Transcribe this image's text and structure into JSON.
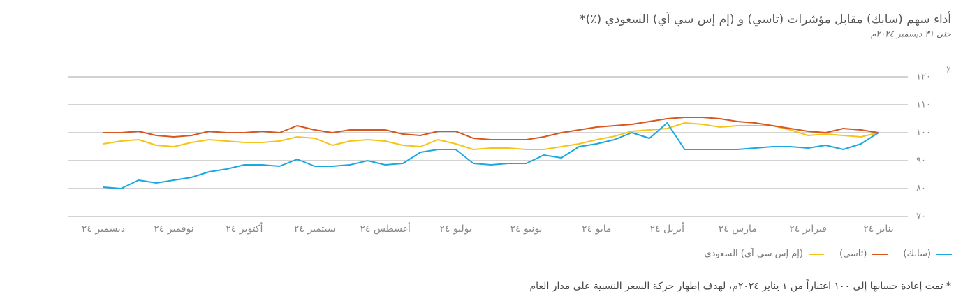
{
  "chart_data": {
    "type": "line",
    "title": "أداء سهم (سابك) مقابل مؤشرات (تاسي) و (إم إس سي آي) السعودي (٪)*",
    "subtitle": "حتى ٣١ ديسمبر ٢٠٢٤م",
    "y_label": "٪",
    "footnote": "* تمت إعادة حسابها إلى ١٠٠ اعتباراً من ١ يناير ٢٠٢٤م، لهدف إظهار حركة السعر النسبية على مدار العام",
    "categories": [
      "يناير ٢٤",
      null,
      null,
      null,
      "فبراير ٢٤",
      null,
      null,
      null,
      "مارس ٢٤",
      null,
      null,
      null,
      "أبريل ٢٤",
      null,
      null,
      null,
      "مايو ٢٤",
      null,
      null,
      null,
      "يونيو ٢٤",
      null,
      null,
      null,
      "يوليو ٢٤",
      null,
      null,
      null,
      "أغسطس ٢٤",
      null,
      null,
      null,
      "سبتمبر ٢٤",
      null,
      null,
      null,
      "أكتوبر ٢٤",
      null,
      null,
      null,
      "نوفمبر ٢٤",
      null,
      null,
      null,
      "ديسمبر ٢٤"
    ],
    "series": [
      {
        "name": "(سابك)",
        "color": "#1ba8e0",
        "values": [
          100,
          96,
          94,
          95.5,
          94.5,
          95,
          95,
          94.5,
          94,
          94,
          94,
          94,
          103.5,
          98,
          100,
          97.5,
          96,
          95,
          91,
          92,
          89,
          89,
          88.5,
          89,
          94,
          94,
          93,
          89,
          88.5,
          90,
          88.5,
          88,
          88,
          90.5,
          88,
          88.5,
          88.5,
          87,
          86,
          84,
          83,
          82,
          83,
          80,
          80.5
        ]
      },
      {
        "name": "(تاسي)",
        "color": "#d9561e",
        "values": [
          100,
          101,
          101.5,
          100,
          100.5,
          101.5,
          102.5,
          103.5,
          104,
          105,
          105.5,
          105.5,
          105,
          104,
          103,
          102.5,
          102,
          101,
          100,
          98.5,
          97.5,
          97.5,
          97.5,
          98,
          100.5,
          100.5,
          99,
          99.5,
          101,
          101,
          101,
          100,
          101,
          102.5,
          100,
          100.5,
          100,
          100,
          100.5,
          99,
          98.5,
          99,
          100.5,
          100,
          100
        ]
      },
      {
        "name": "(إم إس سي آي) السعودي",
        "color": "#f5c41a",
        "values": [
          100,
          98.5,
          99,
          99.5,
          99,
          101,
          102.5,
          102.5,
          102.5,
          102,
          103,
          103.5,
          101.5,
          101,
          100.5,
          98.7,
          97.5,
          96,
          95,
          94,
          94,
          94.5,
          94.5,
          94,
          96,
          97.5,
          95,
          95.5,
          97,
          97.5,
          97,
          95.5,
          98,
          98.5,
          97,
          96.5,
          96.5,
          97,
          97.5,
          96.5,
          95,
          95.5,
          97.5,
          97,
          96
        ]
      }
    ],
    "ylim": [
      70,
      120
    ],
    "yticks": [
      {
        "value": 70,
        "label": "٧٠"
      },
      {
        "value": 80,
        "label": "٨٠"
      },
      {
        "value": 90,
        "label": "٩٠"
      },
      {
        "value": 100,
        "label": "١٠٠"
      },
      {
        "value": 110,
        "label": "١١٠"
      },
      {
        "value": 120,
        "label": "١٢٠"
      }
    ],
    "grid": true,
    "x_reversed": true
  }
}
